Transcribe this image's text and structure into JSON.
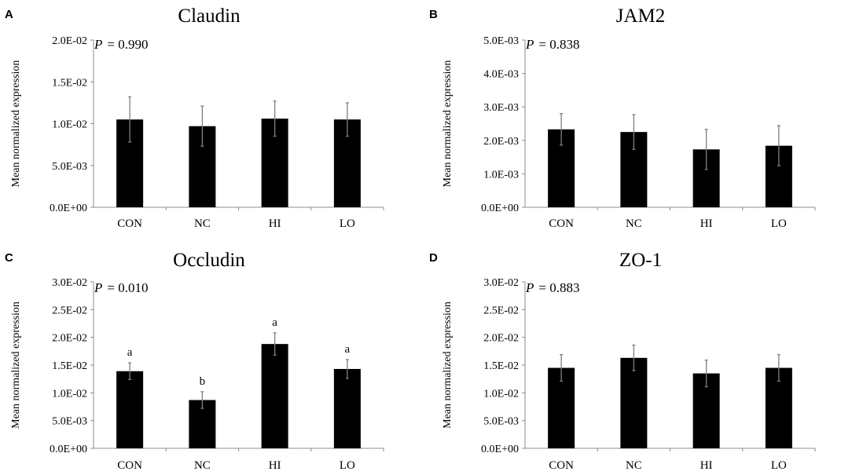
{
  "chart_data": [
    {
      "panel_label": "A",
      "type": "bar",
      "title": "Claudin",
      "p_label": "P",
      "p_value": "= 0.990",
      "ylabel": "Mean normalized expression",
      "xlabel": "",
      "categories": [
        "CON",
        "NC",
        "HI",
        "LO"
      ],
      "values": [
        0.0105,
        0.0097,
        0.0106,
        0.0105
      ],
      "errors": [
        0.0027,
        0.0024,
        0.0021,
        0.002
      ],
      "significance": [],
      "ylim": [
        0,
        0.02
      ],
      "yticks": [
        0,
        0.005,
        0.01,
        0.015,
        0.02
      ],
      "ytick_labels": [
        "0.0E+00",
        "5.0E-03",
        "1.0E-02",
        "1.5E-02",
        "2.0E-02"
      ],
      "grid": false
    },
    {
      "panel_label": "B",
      "type": "bar",
      "title": "JAM2",
      "p_label": "P",
      "p_value": "= 0.838",
      "ylabel": "Mean normalized expression",
      "xlabel": "",
      "categories": [
        "CON",
        "NC",
        "HI",
        "LO"
      ],
      "values": [
        0.00233,
        0.00225,
        0.00173,
        0.00184
      ],
      "errors": [
        0.00047,
        0.00052,
        0.0006,
        0.0006
      ],
      "significance": [],
      "ylim": [
        0,
        0.005
      ],
      "yticks": [
        0,
        0.001,
        0.002,
        0.003,
        0.004,
        0.005
      ],
      "ytick_labels": [
        "0.0E+00",
        "1.0E-03",
        "2.0E-03",
        "3.0E-03",
        "4.0E-03",
        "5.0E-03"
      ],
      "grid": false
    },
    {
      "panel_label": "C",
      "type": "bar",
      "title": "Occludin",
      "p_label": "P",
      "p_value": "= 0.010",
      "ylabel": "Mean normalized expression",
      "xlabel": "",
      "categories": [
        "CON",
        "NC",
        "HI",
        "LO"
      ],
      "values": [
        0.0139,
        0.0087,
        0.0188,
        0.0143
      ],
      "errors": [
        0.0015,
        0.0015,
        0.002,
        0.0017
      ],
      "significance": [
        "a",
        "b",
        "a",
        "a"
      ],
      "ylim": [
        0,
        0.03
      ],
      "yticks": [
        0,
        0.005,
        0.01,
        0.015,
        0.02,
        0.025,
        0.03
      ],
      "ytick_labels": [
        "0.0E+00",
        "5.0E-03",
        "1.0E-02",
        "1.5E-02",
        "2.0E-02",
        "2.5E-02",
        "3.0E-02"
      ],
      "grid": false
    },
    {
      "panel_label": "D",
      "type": "bar",
      "title": "ZO-1",
      "p_label": "P",
      "p_value": "= 0.883",
      "ylabel": "Mean normalized expression",
      "xlabel": "",
      "categories": [
        "CON",
        "NC",
        "HI",
        "LO"
      ],
      "values": [
        0.0145,
        0.0163,
        0.0135,
        0.0145
      ],
      "errors": [
        0.0024,
        0.0023,
        0.0024,
        0.0024
      ],
      "significance": [],
      "ylim": [
        0,
        0.03
      ],
      "yticks": [
        0,
        0.005,
        0.01,
        0.015,
        0.02,
        0.025,
        0.03
      ],
      "ytick_labels": [
        "0.0E+00",
        "5.0E-03",
        "1.0E-02",
        "1.5E-02",
        "2.0E-02",
        "2.5E-02",
        "3.0E-02"
      ],
      "grid": false
    }
  ],
  "colors": {
    "bar": "#000000",
    "error_bar": "#7f7f7f",
    "axis": "#8c8c8c"
  }
}
